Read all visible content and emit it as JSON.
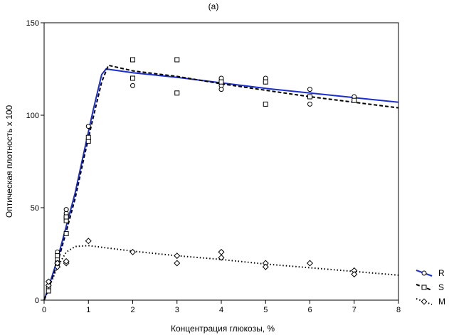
{
  "chart_data": {
    "type": "scatter",
    "title": "(a)",
    "xlabel": "Концентрация глюкозы, %",
    "ylabel": "Оптическая плотность x 100",
    "xlim": [
      0,
      8
    ],
    "ylim": [
      0,
      150
    ],
    "xticks": [
      0,
      1,
      2,
      3,
      4,
      5,
      6,
      7,
      8
    ],
    "yticks": [
      0,
      50,
      100,
      150
    ],
    "legend_position": "bottom-right",
    "grid": false,
    "series": [
      {
        "name": "R",
        "color": "#1a2ecc",
        "line_style": "solid",
        "marker": "circle",
        "fit": [
          [
            0,
            0
          ],
          [
            0.1,
            7
          ],
          [
            0.3,
            22
          ],
          [
            0.5,
            40
          ],
          [
            0.7,
            58
          ],
          [
            0.9,
            80
          ],
          [
            1.1,
            102
          ],
          [
            1.3,
            122
          ],
          [
            1.4,
            125
          ],
          [
            2,
            123
          ],
          [
            3,
            120.5
          ],
          [
            4,
            117.5
          ],
          [
            5,
            114.5
          ],
          [
            6,
            112
          ],
          [
            7,
            109.5
          ],
          [
            8,
            107
          ]
        ],
        "points": [
          [
            0.1,
            7
          ],
          [
            0.1,
            8
          ],
          [
            0.3,
            22
          ],
          [
            0.3,
            26
          ],
          [
            0.5,
            45
          ],
          [
            0.5,
            47
          ],
          [
            0.5,
            49
          ],
          [
            1,
            94
          ],
          [
            1,
            87
          ],
          [
            2,
            116
          ],
          [
            4,
            120
          ],
          [
            4,
            118
          ],
          [
            4,
            116
          ],
          [
            4,
            114
          ],
          [
            5,
            120
          ],
          [
            5,
            118
          ],
          [
            6,
            114
          ],
          [
            6,
            110
          ],
          [
            6,
            106
          ],
          [
            7,
            110
          ]
        ]
      },
      {
        "name": "S",
        "color": "#000000",
        "line_style": "dashed",
        "marker": "square",
        "fit": [
          [
            0,
            0
          ],
          [
            0.1,
            6
          ],
          [
            0.3,
            20
          ],
          [
            0.5,
            37
          ],
          [
            0.7,
            55
          ],
          [
            0.9,
            77
          ],
          [
            1.1,
            98
          ],
          [
            1.3,
            118
          ],
          [
            1.45,
            127
          ],
          [
            2,
            124
          ],
          [
            3,
            121
          ],
          [
            4,
            117
          ],
          [
            5,
            113.5
          ],
          [
            6,
            110
          ],
          [
            7,
            107
          ],
          [
            8,
            104
          ]
        ],
        "points": [
          [
            0.1,
            6
          ],
          [
            0.1,
            5
          ],
          [
            0.3,
            20
          ],
          [
            0.3,
            24
          ],
          [
            0.5,
            36
          ],
          [
            0.5,
            43
          ],
          [
            0.5,
            45
          ],
          [
            1,
            86
          ],
          [
            1,
            88
          ],
          [
            2,
            130
          ],
          [
            2,
            120
          ],
          [
            3,
            130
          ],
          [
            3,
            112
          ],
          [
            4,
            118
          ],
          [
            5,
            118
          ],
          [
            5,
            106
          ],
          [
            6,
            110
          ],
          [
            7,
            108
          ]
        ]
      },
      {
        "name": "M",
        "color": "#000000",
        "line_style": "dotted",
        "marker": "diamond",
        "fit": [
          [
            0,
            0
          ],
          [
            0.1,
            6
          ],
          [
            0.3,
            18
          ],
          [
            0.5,
            26
          ],
          [
            0.7,
            29
          ],
          [
            1,
            29.5
          ],
          [
            1.5,
            28
          ],
          [
            2,
            26.5
          ],
          [
            3,
            24
          ],
          [
            4,
            22
          ],
          [
            5,
            19.5
          ],
          [
            6,
            17.5
          ],
          [
            7,
            15.5
          ],
          [
            8,
            13.5
          ]
        ],
        "points": [
          [
            0.1,
            8
          ],
          [
            0.1,
            10
          ],
          [
            0.3,
            18
          ],
          [
            0.3,
            20
          ],
          [
            0.5,
            20
          ],
          [
            0.5,
            21
          ],
          [
            1,
            32
          ],
          [
            2,
            26
          ],
          [
            3,
            24
          ],
          [
            3,
            20
          ],
          [
            4,
            26
          ],
          [
            4,
            23
          ],
          [
            5,
            20
          ],
          [
            5,
            18
          ],
          [
            6,
            20
          ],
          [
            7,
            16
          ],
          [
            7,
            14
          ]
        ]
      }
    ]
  }
}
